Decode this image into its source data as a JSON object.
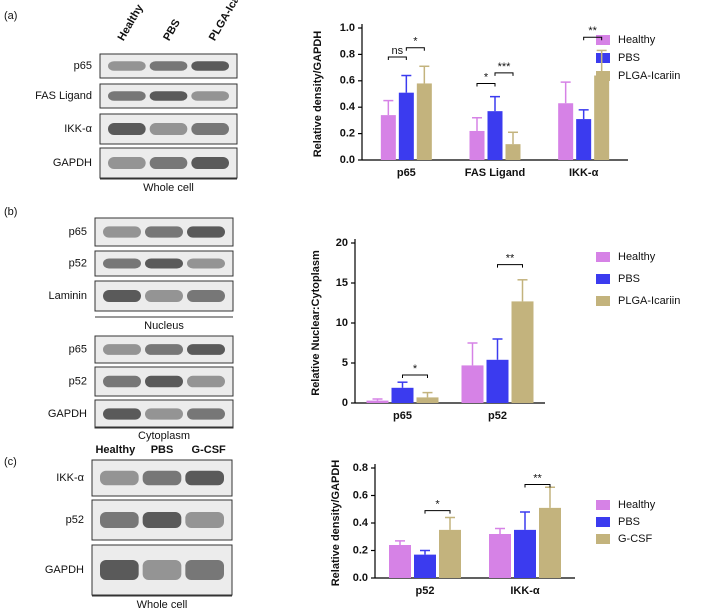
{
  "chart_data": [
    {
      "type": "bar",
      "ylabel": "Relative density/GAPDH",
      "categories": [
        "p65",
        "FAS Ligand",
        "IKK-α"
      ],
      "series": [
        {
          "name": "Healthy",
          "color": "#d682e6",
          "values": [
            0.34,
            0.22,
            0.43
          ],
          "errors": [
            0.11,
            0.1,
            0.16
          ]
        },
        {
          "name": "PBS",
          "color": "#3b3bef",
          "values": [
            0.51,
            0.37,
            0.31
          ],
          "errors": [
            0.13,
            0.11,
            0.07
          ]
        },
        {
          "name": "PLGA-Icariin",
          "color": "#c3b37d",
          "values": [
            0.58,
            0.12,
            0.64
          ],
          "errors": [
            0.13,
            0.09,
            0.19
          ]
        }
      ],
      "ylim": [
        0,
        1
      ],
      "yticks": [
        {
          "value": 0,
          "label": "0.0"
        },
        0.2,
        0.4,
        0.6,
        0.8,
        {
          "value": 1,
          "label": "1.0"
        }
      ],
      "annotations": [
        "ns",
        "*",
        "*",
        "***",
        "**"
      ]
    },
    {
      "type": "bar",
      "ylabel": "Relative Nuclear:Cytoplasm",
      "categories": [
        "p65",
        "p52"
      ],
      "series": [
        {
          "name": "Healthy",
          "color": "#d682e6",
          "values": [
            0.3,
            4.7
          ],
          "errors": [
            0.2,
            2.8
          ]
        },
        {
          "name": "PBS",
          "color": "#3b3bef",
          "values": [
            1.9,
            5.4
          ],
          "errors": [
            0.7,
            2.6
          ]
        },
        {
          "name": "PLGA-Icariin",
          "color": "#c3b37d",
          "values": [
            0.7,
            12.7
          ],
          "errors": [
            0.6,
            2.7
          ]
        }
      ],
      "ylim": [
        0,
        20
      ],
      "yticks": [
        0,
        5,
        10,
        15,
        20
      ],
      "annotations": [
        "*",
        "**"
      ]
    },
    {
      "type": "bar",
      "ylabel": "Relative density/GAPDH",
      "categories": [
        "p52",
        "IKK-α"
      ],
      "series": [
        {
          "name": "Healthy",
          "color": "#d682e6",
          "values": [
            0.24,
            0.32
          ],
          "errors": [
            0.03,
            0.04
          ]
        },
        {
          "name": "PBS",
          "color": "#3b3bef",
          "values": [
            0.17,
            0.35
          ],
          "errors": [
            0.03,
            0.13
          ]
        },
        {
          "name": "G-CSF",
          "color": "#c3b37d",
          "values": [
            0.35,
            0.51
          ],
          "errors": [
            0.09,
            0.15
          ]
        }
      ],
      "ylim": [
        0,
        0.8
      ],
      "yticks": [
        {
          "value": 0,
          "label": "0.0"
        },
        0.2,
        0.4,
        0.6,
        0.8
      ],
      "annotations": [
        "*",
        "**"
      ]
    }
  ],
  "panels": [
    {
      "label": "(a)",
      "lanes": [
        "Healthy",
        "PBS",
        "PLGA-Icariin"
      ],
      "groups": [
        {
          "rows": [
            "p65",
            "FAS Ligand",
            "IKK-α",
            "GAPDH"
          ],
          "caption": "Whole cell"
        }
      ]
    },
    {
      "label": "(b)",
      "groups": [
        {
          "rows": [
            "p65",
            "p52",
            "Laminin"
          ],
          "caption": "Nucleus"
        },
        {
          "rows": [
            "p65",
            "p52",
            "GAPDH"
          ],
          "caption": "Cytoplasm"
        }
      ]
    },
    {
      "label": "(c)",
      "lanes": [
        "Healthy",
        "PBS",
        "G-CSF"
      ],
      "groups": [
        {
          "rows": [
            "IKK-α",
            "p52",
            "GAPDH"
          ],
          "caption": "Whole cell"
        }
      ]
    }
  ]
}
